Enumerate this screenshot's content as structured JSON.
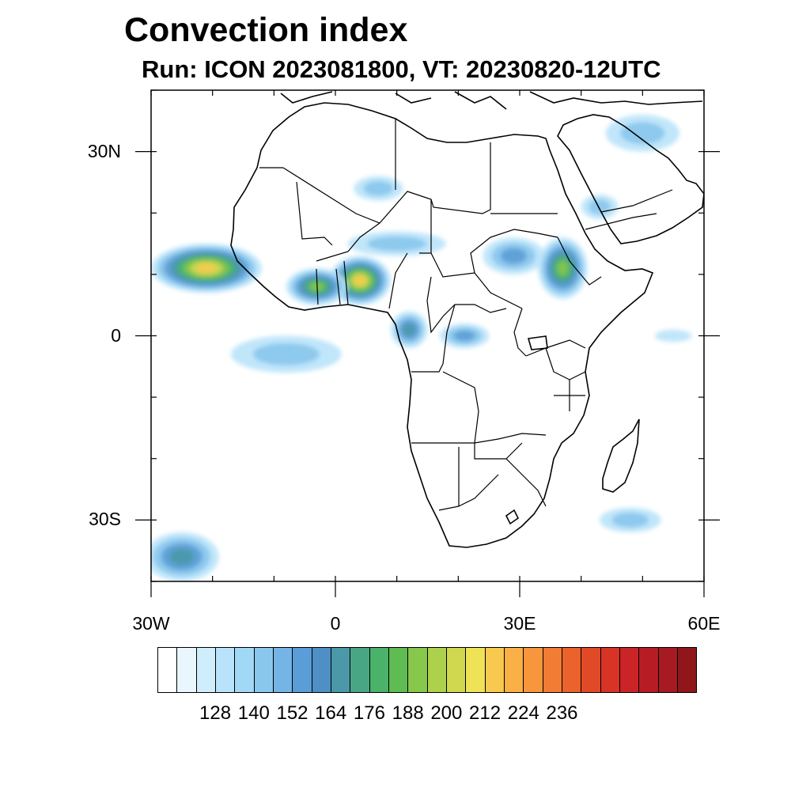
{
  "title": "Convection index",
  "subtitle": "Run: ICON 2023081800,  VT: 20230820-12UTC",
  "map": {
    "extent": {
      "lon": [
        -30,
        60
      ],
      "lat": [
        -40,
        40
      ]
    },
    "lat_ticks": [
      {
        "value": 30,
        "label": "30N"
      },
      {
        "value": 0,
        "label": "0"
      },
      {
        "value": -30,
        "label": "30S"
      }
    ],
    "lon_ticks": [
      {
        "value": -30,
        "label": "30W"
      },
      {
        "value": 0,
        "label": "0"
      },
      {
        "value": 30,
        "label": "30E"
      },
      {
        "value": 60,
        "label": "60E"
      }
    ],
    "field_features": [
      {
        "name": "west-africa-coast-convection",
        "lon": -21,
        "lat": 11,
        "rx": 9,
        "ry": 4,
        "peak": 218
      },
      {
        "name": "nigeria-convection",
        "lon": 4,
        "lat": 9,
        "rx": 5,
        "ry": 4,
        "peak": 222
      },
      {
        "name": "ivory-coast-convection",
        "lon": -3,
        "lat": 8,
        "rx": 5,
        "ry": 3,
        "peak": 190
      },
      {
        "name": "gulf-guinea-convection",
        "lon": -8,
        "lat": -3,
        "rx": 9,
        "ry": 3,
        "peak": 150
      },
      {
        "name": "cameroon-convection",
        "lon": 12,
        "lat": 1,
        "rx": 3,
        "ry": 3,
        "peak": 165
      },
      {
        "name": "central-africa-convection",
        "lon": 21,
        "lat": 0,
        "rx": 4,
        "ry": 2,
        "peak": 160
      },
      {
        "name": "ethiopia-convection",
        "lon": 37,
        "lat": 11,
        "rx": 4,
        "ry": 5,
        "peak": 195
      },
      {
        "name": "sudan-convection",
        "lon": 29,
        "lat": 13,
        "rx": 5,
        "ry": 3,
        "peak": 155
      },
      {
        "name": "yemen-convection",
        "lon": 43,
        "lat": 21,
        "rx": 3,
        "ry": 2,
        "peak": 150
      },
      {
        "name": "sahara-convection",
        "lon": 7,
        "lat": 24,
        "rx": 4,
        "ry": 2,
        "peak": 140
      },
      {
        "name": "sahel-convection",
        "lon": 10,
        "lat": 15,
        "rx": 8,
        "ry": 2,
        "peak": 140
      },
      {
        "name": "middle-east-convection",
        "lon": 50,
        "lat": 33,
        "rx": 6,
        "ry": 3,
        "peak": 150
      },
      {
        "name": "south-atlantic-convection",
        "lon": -25,
        "lat": -36,
        "rx": 6,
        "ry": 4,
        "peak": 175
      },
      {
        "name": "madagascar-convection",
        "lon": 48,
        "lat": -30,
        "rx": 5,
        "ry": 2,
        "peak": 140
      },
      {
        "name": "indian-ocean-convection",
        "lon": 55,
        "lat": 0,
        "rx": 3,
        "ry": 1,
        "peak": 135
      }
    ]
  },
  "colorbar": {
    "colors": [
      "#ffffff",
      "#e9f6fe",
      "#d0edfc",
      "#b9e3fa",
      "#a1d8f5",
      "#8ac7ed",
      "#74b5e5",
      "#5b9dd6",
      "#4e8fc4",
      "#4a98a8",
      "#49a684",
      "#4bb26a",
      "#5fbc52",
      "#86c74c",
      "#add14c",
      "#cfd84f",
      "#f0e257",
      "#f8c94f",
      "#f9b046",
      "#f7963c",
      "#f27c34",
      "#ea622c",
      "#e04a27",
      "#d83426",
      "#cb2426",
      "#b71c24",
      "#a71a22",
      "#8f1719"
    ],
    "labels": [
      "128",
      "140",
      "152",
      "164",
      "176",
      "188",
      "200",
      "212",
      "224",
      "236"
    ],
    "label_boundary_index": [
      2,
      4,
      6,
      8,
      10,
      12,
      14,
      16,
      18,
      20
    ]
  }
}
